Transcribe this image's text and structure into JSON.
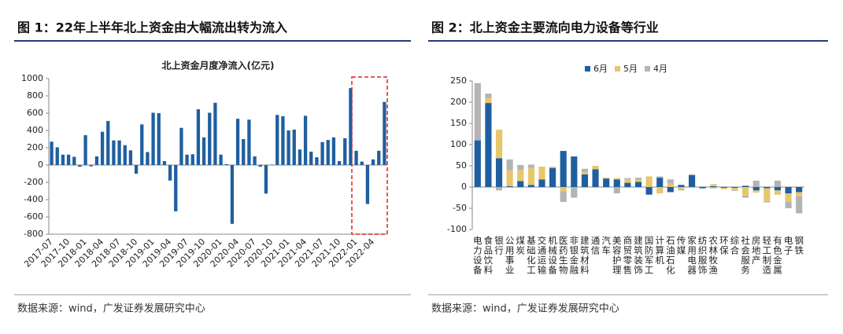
{
  "figures": [
    {
      "caption": "图 1：22年上半年北上资金由大幅流出转为流入",
      "source": "数据来源：wind，广发证券发展研究中心"
    },
    {
      "caption": "图 2：北上资金主要流向电力设备等行业",
      "source": "数据来源：wind，广发证券发展研究中心"
    }
  ],
  "chart_data": [
    {
      "type": "bar",
      "title": "北上资金月度净流入(亿元)",
      "color": "#1f5fa0",
      "categories": [
        "2017-07",
        null,
        null,
        "2017-10",
        null,
        null,
        "2018-01",
        null,
        null,
        "2018-04",
        null,
        null,
        "2018-07",
        null,
        null,
        "2018-10",
        null,
        null,
        "2019-01",
        null,
        null,
        "2019-04",
        null,
        null,
        "2019-07",
        null,
        null,
        "2019-10",
        null,
        null,
        "2020-01",
        null,
        null,
        "2020-04",
        null,
        null,
        "2020-07",
        null,
        null,
        "2020-10",
        null,
        null,
        "2021-01",
        null,
        null,
        "2021-04",
        null,
        null,
        "2021-07",
        null,
        null,
        "2021-10",
        null,
        null,
        "2022-01",
        null,
        null,
        "2022-04",
        null,
        null
      ],
      "values": [
        270,
        205,
        120,
        120,
        95,
        -20,
        345,
        -15,
        100,
        385,
        510,
        285,
        285,
        230,
        170,
        -100,
        470,
        150,
        605,
        600,
        45,
        -180,
        -535,
        430,
        120,
        125,
        645,
        320,
        605,
        720,
        120,
        10,
        -680,
        535,
        300,
        525,
        100,
        -20,
        -330,
        5,
        580,
        565,
        400,
        410,
        180,
        570,
        155,
        90,
        265,
        290,
        320,
        45,
        310,
        890,
        165,
        40,
        -450,
        65,
        165,
        730
      ],
      "ylim": [
        -800,
        1000
      ],
      "yticks": [
        -800,
        -600,
        -400,
        -200,
        0,
        200,
        400,
        600,
        800,
        1000
      ]
    },
    {
      "type": "stacked_bar",
      "categories": [
        "电力设备",
        "食品饮料",
        "银行",
        "公用事业",
        "煤炭",
        "基础化工",
        "交通运输",
        "机械设备",
        "医药生物",
        "非银金融",
        "建筑材料",
        "通信",
        "汽车",
        "美容护理",
        "商贸零售",
        "建筑装饰",
        "国防军工",
        "计算机",
        "石油石化",
        "传媒",
        "家用电器",
        "纺织服饰",
        "农林牧渔",
        "环保",
        "综合",
        "社会服务",
        "房地产",
        "轻工制造",
        "有色金属",
        "电子",
        "钢铁"
      ],
      "series": [
        {
          "name": "6月",
          "color": "#1f5fa0",
          "values": [
            110,
            198,
            68,
            2,
            14,
            5,
            18,
            45,
            85,
            72,
            30,
            42,
            20,
            18,
            10,
            12,
            -18,
            22,
            -12,
            5,
            28,
            -3,
            2,
            -2,
            -2,
            3,
            -8,
            -3,
            -8,
            -15,
            -12
          ]
        },
        {
          "name": "5月",
          "color": "#e8c66a",
          "values": [
            0,
            12,
            67,
            38,
            26,
            40,
            30,
            3,
            -10,
            0,
            5,
            8,
            2,
            3,
            8,
            5,
            25,
            -15,
            8,
            -5,
            -2,
            0,
            5,
            -3,
            -5,
            -20,
            -5,
            -30,
            -10,
            -20,
            -10
          ]
        },
        {
          "name": "4月",
          "color": "#b4b4b4",
          "values": [
            135,
            10,
            -8,
            25,
            12,
            8,
            0,
            0,
            -25,
            -25,
            8,
            0,
            0,
            -15,
            3,
            5,
            0,
            3,
            10,
            -3,
            2,
            2,
            -3,
            0,
            -2,
            -5,
            15,
            -3,
            15,
            -15,
            -40
          ]
        }
      ],
      "ylim": [
        -100,
        250
      ],
      "yticks": [
        -100,
        -50,
        0,
        50,
        100,
        150,
        200,
        250
      ],
      "legend": "top"
    }
  ]
}
